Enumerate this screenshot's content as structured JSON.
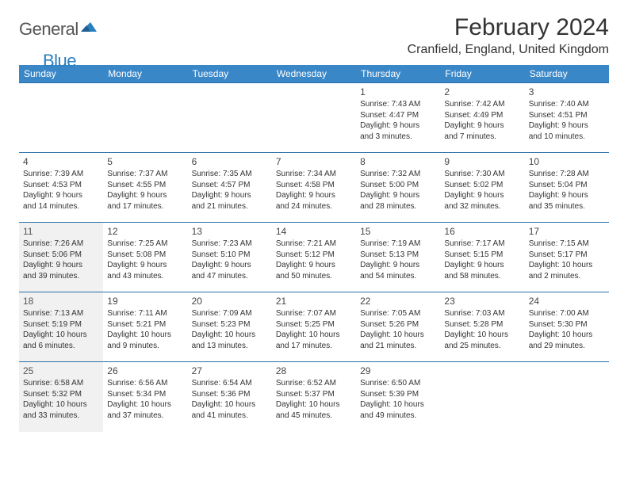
{
  "logo": {
    "general": "General",
    "blue": "Blue"
  },
  "title": "February 2024",
  "location": "Cranfield, England, United Kingdom",
  "colors": {
    "header_bg": "#3a87c8",
    "header_text": "#ffffff",
    "row_border": "#2a6fa8",
    "na_bg": "#f1f1f1",
    "text": "#333333",
    "logo_blue": "#2a7fbf"
  },
  "day_headers": [
    "Sunday",
    "Monday",
    "Tuesday",
    "Wednesday",
    "Thursday",
    "Friday",
    "Saturday"
  ],
  "weeks": [
    [
      null,
      null,
      null,
      null,
      {
        "d": "1",
        "sr": "Sunrise: 7:43 AM",
        "ss": "Sunset: 4:47 PM",
        "dl1": "Daylight: 9 hours",
        "dl2": "and 3 minutes."
      },
      {
        "d": "2",
        "sr": "Sunrise: 7:42 AM",
        "ss": "Sunset: 4:49 PM",
        "dl1": "Daylight: 9 hours",
        "dl2": "and 7 minutes."
      },
      {
        "d": "3",
        "sr": "Sunrise: 7:40 AM",
        "ss": "Sunset: 4:51 PM",
        "dl1": "Daylight: 9 hours",
        "dl2": "and 10 minutes."
      }
    ],
    [
      {
        "d": "4",
        "sr": "Sunrise: 7:39 AM",
        "ss": "Sunset: 4:53 PM",
        "dl1": "Daylight: 9 hours",
        "dl2": "and 14 minutes."
      },
      {
        "d": "5",
        "sr": "Sunrise: 7:37 AM",
        "ss": "Sunset: 4:55 PM",
        "dl1": "Daylight: 9 hours",
        "dl2": "and 17 minutes."
      },
      {
        "d": "6",
        "sr": "Sunrise: 7:35 AM",
        "ss": "Sunset: 4:57 PM",
        "dl1": "Daylight: 9 hours",
        "dl2": "and 21 minutes."
      },
      {
        "d": "7",
        "sr": "Sunrise: 7:34 AM",
        "ss": "Sunset: 4:58 PM",
        "dl1": "Daylight: 9 hours",
        "dl2": "and 24 minutes."
      },
      {
        "d": "8",
        "sr": "Sunrise: 7:32 AM",
        "ss": "Sunset: 5:00 PM",
        "dl1": "Daylight: 9 hours",
        "dl2": "and 28 minutes."
      },
      {
        "d": "9",
        "sr": "Sunrise: 7:30 AM",
        "ss": "Sunset: 5:02 PM",
        "dl1": "Daylight: 9 hours",
        "dl2": "and 32 minutes."
      },
      {
        "d": "10",
        "sr": "Sunrise: 7:28 AM",
        "ss": "Sunset: 5:04 PM",
        "dl1": "Daylight: 9 hours",
        "dl2": "and 35 minutes."
      }
    ],
    [
      {
        "d": "11",
        "sr": "Sunrise: 7:26 AM",
        "ss": "Sunset: 5:06 PM",
        "dl1": "Daylight: 9 hours",
        "dl2": "and 39 minutes.",
        "na": true
      },
      {
        "d": "12",
        "sr": "Sunrise: 7:25 AM",
        "ss": "Sunset: 5:08 PM",
        "dl1": "Daylight: 9 hours",
        "dl2": "and 43 minutes."
      },
      {
        "d": "13",
        "sr": "Sunrise: 7:23 AM",
        "ss": "Sunset: 5:10 PM",
        "dl1": "Daylight: 9 hours",
        "dl2": "and 47 minutes."
      },
      {
        "d": "14",
        "sr": "Sunrise: 7:21 AM",
        "ss": "Sunset: 5:12 PM",
        "dl1": "Daylight: 9 hours",
        "dl2": "and 50 minutes."
      },
      {
        "d": "15",
        "sr": "Sunrise: 7:19 AM",
        "ss": "Sunset: 5:13 PM",
        "dl1": "Daylight: 9 hours",
        "dl2": "and 54 minutes."
      },
      {
        "d": "16",
        "sr": "Sunrise: 7:17 AM",
        "ss": "Sunset: 5:15 PM",
        "dl1": "Daylight: 9 hours",
        "dl2": "and 58 minutes."
      },
      {
        "d": "17",
        "sr": "Sunrise: 7:15 AM",
        "ss": "Sunset: 5:17 PM",
        "dl1": "Daylight: 10 hours",
        "dl2": "and 2 minutes."
      }
    ],
    [
      {
        "d": "18",
        "sr": "Sunrise: 7:13 AM",
        "ss": "Sunset: 5:19 PM",
        "dl1": "Daylight: 10 hours",
        "dl2": "and 6 minutes.",
        "na": true
      },
      {
        "d": "19",
        "sr": "Sunrise: 7:11 AM",
        "ss": "Sunset: 5:21 PM",
        "dl1": "Daylight: 10 hours",
        "dl2": "and 9 minutes."
      },
      {
        "d": "20",
        "sr": "Sunrise: 7:09 AM",
        "ss": "Sunset: 5:23 PM",
        "dl1": "Daylight: 10 hours",
        "dl2": "and 13 minutes."
      },
      {
        "d": "21",
        "sr": "Sunrise: 7:07 AM",
        "ss": "Sunset: 5:25 PM",
        "dl1": "Daylight: 10 hours",
        "dl2": "and 17 minutes."
      },
      {
        "d": "22",
        "sr": "Sunrise: 7:05 AM",
        "ss": "Sunset: 5:26 PM",
        "dl1": "Daylight: 10 hours",
        "dl2": "and 21 minutes."
      },
      {
        "d": "23",
        "sr": "Sunrise: 7:03 AM",
        "ss": "Sunset: 5:28 PM",
        "dl1": "Daylight: 10 hours",
        "dl2": "and 25 minutes."
      },
      {
        "d": "24",
        "sr": "Sunrise: 7:00 AM",
        "ss": "Sunset: 5:30 PM",
        "dl1": "Daylight: 10 hours",
        "dl2": "and 29 minutes."
      }
    ],
    [
      {
        "d": "25",
        "sr": "Sunrise: 6:58 AM",
        "ss": "Sunset: 5:32 PM",
        "dl1": "Daylight: 10 hours",
        "dl2": "and 33 minutes.",
        "na": true
      },
      {
        "d": "26",
        "sr": "Sunrise: 6:56 AM",
        "ss": "Sunset: 5:34 PM",
        "dl1": "Daylight: 10 hours",
        "dl2": "and 37 minutes."
      },
      {
        "d": "27",
        "sr": "Sunrise: 6:54 AM",
        "ss": "Sunset: 5:36 PM",
        "dl1": "Daylight: 10 hours",
        "dl2": "and 41 minutes."
      },
      {
        "d": "28",
        "sr": "Sunrise: 6:52 AM",
        "ss": "Sunset: 5:37 PM",
        "dl1": "Daylight: 10 hours",
        "dl2": "and 45 minutes."
      },
      {
        "d": "29",
        "sr": "Sunrise: 6:50 AM",
        "ss": "Sunset: 5:39 PM",
        "dl1": "Daylight: 10 hours",
        "dl2": "and 49 minutes."
      },
      null,
      null
    ]
  ]
}
